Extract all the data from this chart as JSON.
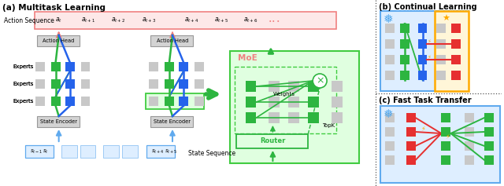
{
  "title_a": "(a) Multitask Learning",
  "title_b": "(b) Continual Learning",
  "title_c": "(c) Fast Task Transfer",
  "action_seq_label": "Action Sequence",
  "state_seq_label": "State Sequence",
  "action_labels": [
    "a_t",
    "a_{t+1}",
    "a_{t+2}",
    "a_{t+3}",
    "a_{t+4}",
    "a_{t+5}",
    "a_{t+6}"
  ],
  "expert_label": "Experts",
  "action_head_label": "Action Head",
  "state_encoder_label": "State Encoder",
  "moe_label": "MoE",
  "router_label": "Router",
  "weights_label": "Weights",
  "topk_label": "TopK",
  "green": "#2db540",
  "blue": "#2563eb",
  "red": "#e63030",
  "light_gray": "#d3d3d3",
  "pink_bg": "#fde8e8",
  "pink_border": "#f08080",
  "blue_bg": "#deeeff",
  "blue_border": "#60aaee",
  "green_bg": "#e0ffe0",
  "green_border": "#40cc40",
  "orange": "#ffaa00",
  "box_gray_fill": "#c8c8c8"
}
